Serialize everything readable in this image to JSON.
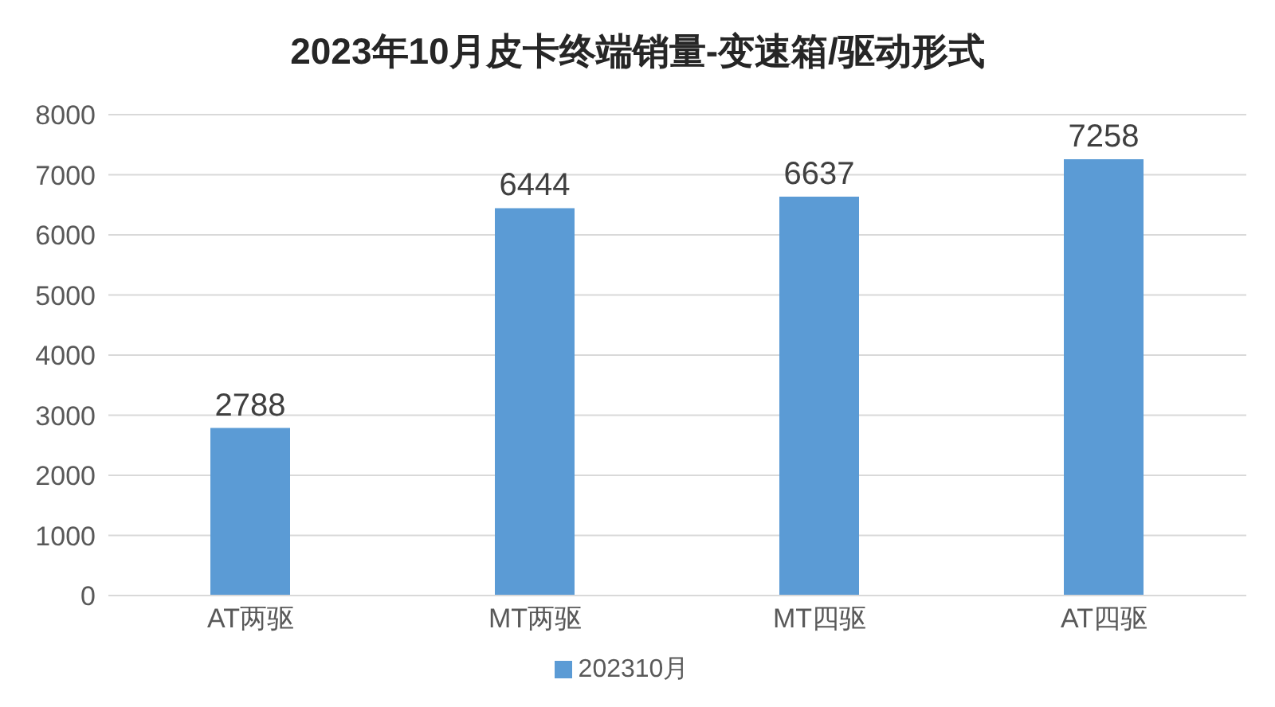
{
  "chart_data": {
    "type": "bar",
    "title": "2023年10月皮卡终端销量-变速箱/驱动形式",
    "categories": [
      "AT两驱",
      "MT两驱",
      "MT四驱",
      "AT四驱"
    ],
    "series": [
      {
        "name": "202310月",
        "color": "#5b9bd5",
        "values": [
          2788,
          6444,
          6637,
          7258
        ]
      }
    ],
    "ylim": [
      0,
      8000
    ],
    "yticks": [
      0,
      1000,
      2000,
      3000,
      4000,
      5000,
      6000,
      7000,
      8000
    ],
    "grid": "y",
    "legend": "bottom",
    "data_labels": true
  }
}
